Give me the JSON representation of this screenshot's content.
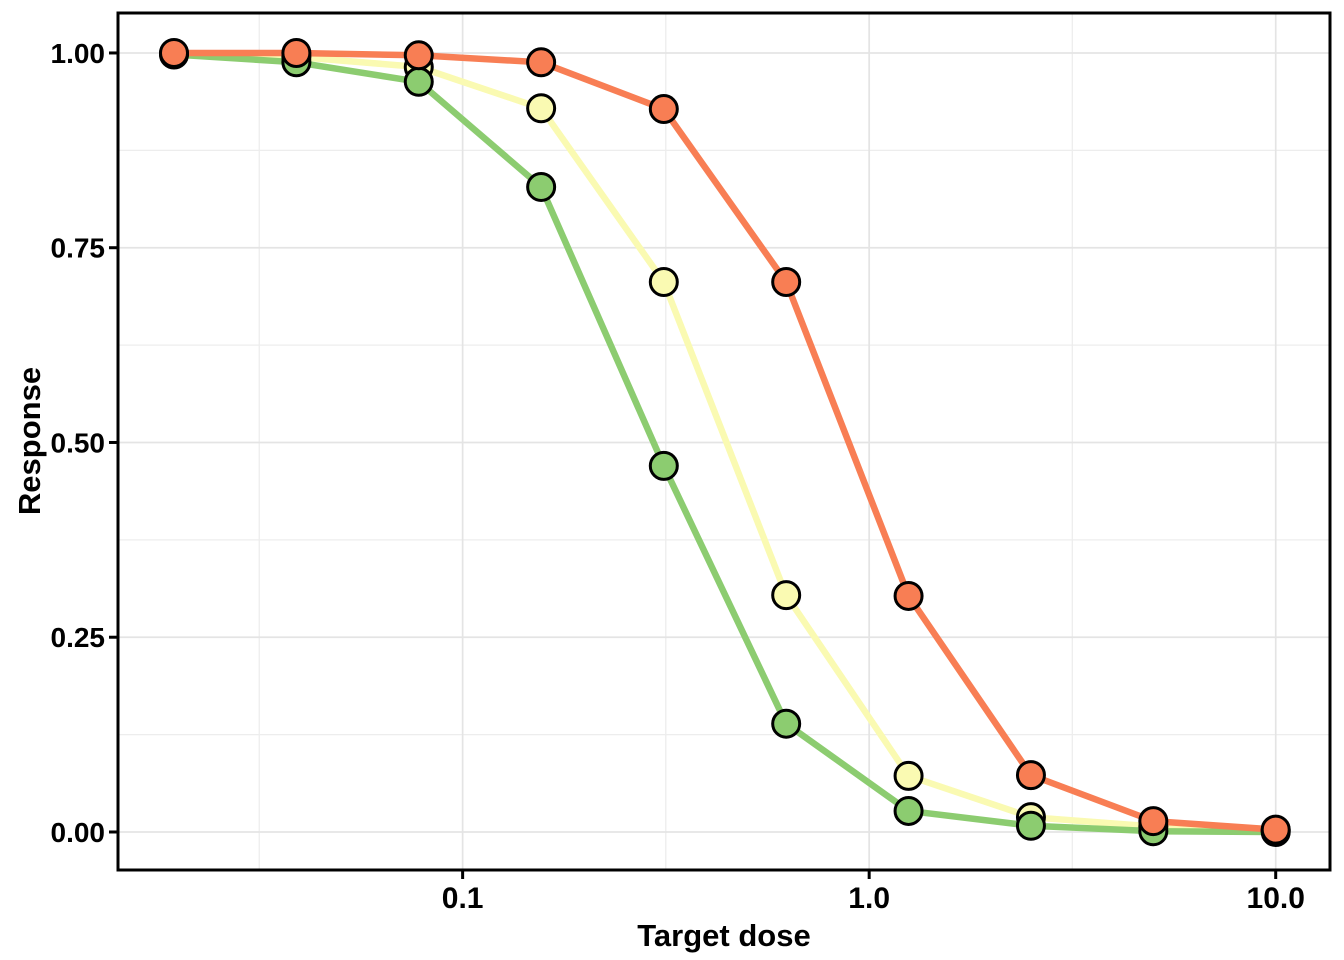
{
  "chart_data": {
    "type": "line",
    "title": "",
    "xlabel": "Target dose",
    "ylabel": "Response",
    "x_scale": "log10",
    "grid": true,
    "legend": "none",
    "x_range": [
      0.0142,
      13.6
    ],
    "y_range": [
      -0.0488,
      1.0513
    ],
    "x_ticks": [
      {
        "value": 0.1,
        "label": "0.1"
      },
      {
        "value": 1.0,
        "label": "1.0"
      },
      {
        "value": 10.0,
        "label": "10.0"
      }
    ],
    "x_minor": [
      0.0316,
      0.316,
      3.16
    ],
    "y_ticks": [
      {
        "value": 0.0,
        "label": "0.00"
      },
      {
        "value": 0.25,
        "label": "0.25"
      },
      {
        "value": 0.5,
        "label": "0.50"
      },
      {
        "value": 0.75,
        "label": "0.75"
      },
      {
        "value": 1.0,
        "label": "1.00"
      }
    ],
    "y_minor": [
      0.125,
      0.375,
      0.625,
      0.875
    ],
    "x": [
      0.0195,
      0.039,
      0.078,
      0.156,
      0.3125,
      0.625,
      1.25,
      2.5,
      5,
      10
    ],
    "series": [
      {
        "name": "curve-yellow",
        "color": "#FAFAB2",
        "values": [
          0.999,
          0.995,
          0.982,
          0.929,
          0.706,
          0.304,
          0.072,
          0.019,
          0.007,
          0.002
        ]
      },
      {
        "name": "curve-green",
        "color": "#8CCC70",
        "values": [
          0.998,
          0.988,
          0.963,
          0.828,
          0.47,
          0.139,
          0.027,
          0.008,
          0.001,
          0.0
        ]
      },
      {
        "name": "curve-orange",
        "color": "#F87E54",
        "values": [
          1.0,
          1.0,
          0.997,
          0.988,
          0.928,
          0.706,
          0.303,
          0.073,
          0.014,
          0.003
        ]
      }
    ],
    "point_style": {
      "shape": "circle",
      "stroke": "#000000",
      "radius": 13.5
    },
    "colors": {
      "panel_background": "#FFFFFF",
      "panel_border": "#000000",
      "grid_major": "#E4E4E4",
      "grid_minor": "#EDEDED",
      "tick": "#000000",
      "text": "#000000"
    }
  }
}
